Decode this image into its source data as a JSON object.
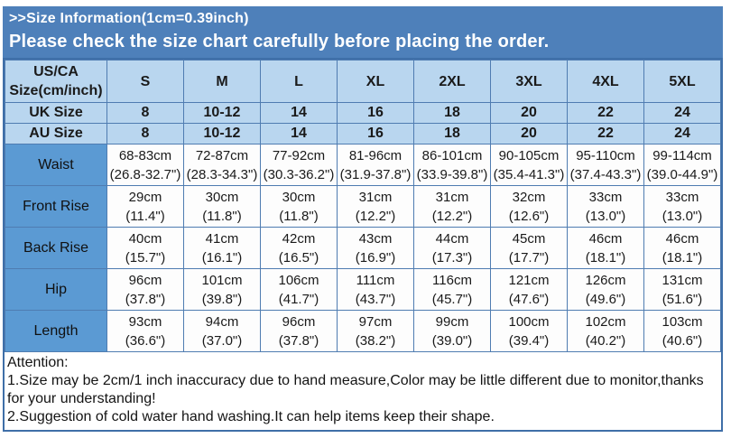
{
  "banner": {
    "title": ">>Size Information(1cm=0.39inch)",
    "subtitle": "Please check the size chart carefully before placing the order.",
    "bg": "#4e80ba",
    "text_color": "#ffffff"
  },
  "size_table": {
    "corner_label": "US/CA\nSize(cm/inch)",
    "columns": [
      "S",
      "M",
      "L",
      "XL",
      "2XL",
      "3XL",
      "4XL",
      "5XL"
    ],
    "simple_rows": [
      {
        "label": "UK Size",
        "values": [
          "8",
          "10-12",
          "14",
          "16",
          "18",
          "20",
          "22",
          "24"
        ]
      },
      {
        "label": "AU Size",
        "values": [
          "8",
          "10-12",
          "14",
          "16",
          "18",
          "20",
          "22",
          "24"
        ]
      }
    ],
    "measure_rows": [
      {
        "label": "Waist",
        "cm": [
          "68-83cm",
          "72-87cm",
          "77-92cm",
          "81-96cm",
          "86-101cm",
          "90-105cm",
          "95-110cm",
          "99-114cm"
        ],
        "inch": [
          "(26.8-32.7\")",
          "(28.3-34.3\")",
          "(30.3-36.2\")",
          "(31.9-37.8\")",
          "(33.9-39.8\")",
          "(35.4-41.3\")",
          "(37.4-43.3\")",
          "(39.0-44.9\")"
        ]
      },
      {
        "label": "Front Rise",
        "cm": [
          "29cm",
          "30cm",
          "30cm",
          "31cm",
          "31cm",
          "32cm",
          "33cm",
          "33cm"
        ],
        "inch": [
          "(11.4\")",
          "(11.8\")",
          "(11.8\")",
          "(12.2\")",
          "(12.2\")",
          "(12.6\")",
          "(13.0\")",
          "(13.0\")"
        ]
      },
      {
        "label": "Back Rise",
        "cm": [
          "40cm",
          "41cm",
          "42cm",
          "43cm",
          "44cm",
          "45cm",
          "46cm",
          "46cm"
        ],
        "inch": [
          "(15.7\")",
          "(16.1\")",
          "(16.5\")",
          "(16.9\")",
          "(17.3\")",
          "(17.7\")",
          "(18.1\")",
          "(18.1\")"
        ]
      },
      {
        "label": "Hip",
        "cm": [
          "96cm",
          "101cm",
          "106cm",
          "111cm",
          "116cm",
          "121cm",
          "126cm",
          "131cm"
        ],
        "inch": [
          "(37.8\")",
          "(39.8\")",
          "(41.7\")",
          "(43.7\")",
          "(45.7\")",
          "(47.6\")",
          "(49.6\")",
          "(51.6\")"
        ]
      },
      {
        "label": "Length",
        "cm": [
          "93cm",
          "94cm",
          "96cm",
          "97cm",
          "99cm",
          "100cm",
          "102cm",
          "103cm"
        ],
        "inch": [
          "(36.6\")",
          "(37.0\")",
          "(37.8\")",
          "(38.2\")",
          "(39.0\")",
          "(39.4\")",
          "(40.2\")",
          "(40.6\")"
        ]
      }
    ],
    "colors": {
      "header_bg": "#b9d6ef",
      "row_label_bg": "#5b9ad3",
      "data_bg": "#fdfdfd",
      "border": "#4f7cb1",
      "outer_border": "#3f6fa8"
    }
  },
  "attention": {
    "heading": "Attention:",
    "note1": "1.Size may be 2cm/1 inch inaccuracy due to hand measure,Color may be little different due to monitor,thanks for your understanding!",
    "note2": "2.Suggestion of cold water hand washing.It can help items keep their shape."
  }
}
